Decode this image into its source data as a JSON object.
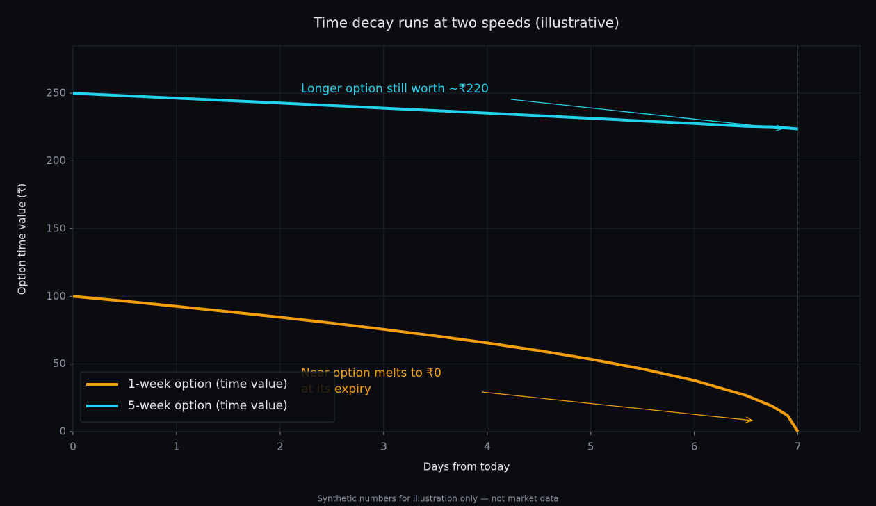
{
  "chart_data": {
    "type": "line",
    "title": "Time decay runs at two speeds (illustrative)",
    "x_label": "Days from today",
    "y_label": "Option time value (₹)",
    "footnote": "Synthetic numbers for illustration only — not market data",
    "x": [
      0,
      0.5,
      1,
      1.5,
      2,
      2.5,
      3,
      3.5,
      4,
      4.5,
      5,
      5.5,
      6,
      6.5,
      6.75,
      6.9,
      7
    ],
    "series": [
      {
        "name": "1-week option (time value)",
        "color": "#f59e0b",
        "values": [
          100,
          96.4,
          92.6,
          88.6,
          84.5,
          80.2,
          75.6,
          70.7,
          65.5,
          59.8,
          53.5,
          46.3,
          37.8,
          26.7,
          18.9,
          12.0,
          0
        ]
      },
      {
        "name": "5-week option (time value)",
        "color": "#22d3ee",
        "values": [
          250,
          248.2,
          246.4,
          244.6,
          242.8,
          240.9,
          239.0,
          237.2,
          235.3,
          233.4,
          231.5,
          229.5,
          227.6,
          225.6,
          225.1,
          224.3,
          223.6
        ]
      }
    ],
    "annotations": [
      {
        "text": [
          "Longer option still worth ~₹220"
        ],
        "color": "#22d3ee"
      },
      {
        "text": [
          "Near option melts to ₹0",
          "at its expiry"
        ],
        "color": "#f59e0b"
      }
    ],
    "xlim": [
      0,
      7.6
    ],
    "ylim": [
      0,
      285
    ],
    "xticks": [
      0,
      1,
      2,
      3,
      4,
      5,
      6,
      7
    ],
    "yticks": [
      0,
      50,
      100,
      150,
      200,
      250
    ],
    "grid": true,
    "legend": "lower left"
  }
}
